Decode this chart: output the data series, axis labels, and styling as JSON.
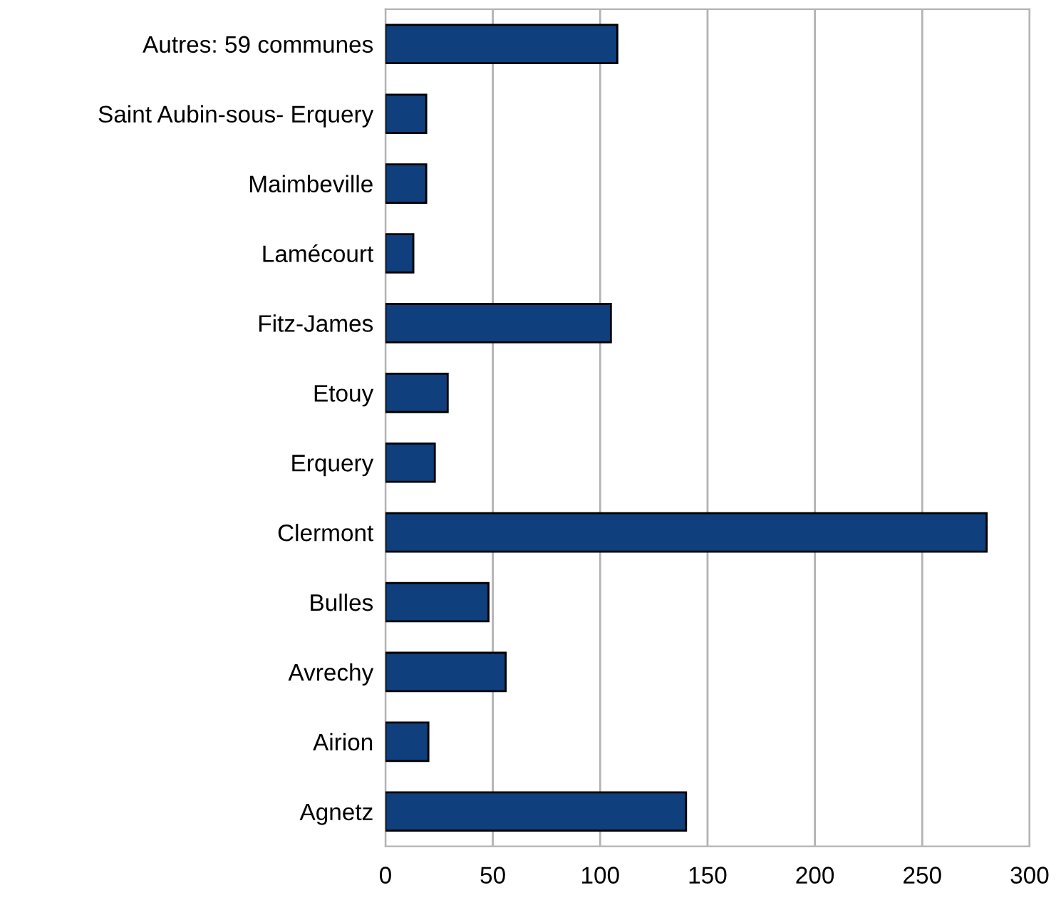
{
  "chart_data": {
    "type": "bar",
    "orientation": "horizontal",
    "categories": [
      "Autres: 59 communes",
      "Saint Aubin-sous- Erquery",
      "Maimbeville",
      "Lamécourt",
      "Fitz-James",
      "Etouy",
      "Erquery",
      "Clermont",
      "Bulles",
      "Avrechy",
      "Airion",
      "Agnetz"
    ],
    "values": [
      108,
      19,
      19,
      13,
      105,
      29,
      23,
      280,
      48,
      56,
      20,
      140
    ],
    "color": "#0f3f7c",
    "xlim": [
      0,
      300
    ],
    "xticks": [
      0,
      50,
      100,
      150,
      200,
      250,
      300
    ],
    "grid": "x"
  }
}
